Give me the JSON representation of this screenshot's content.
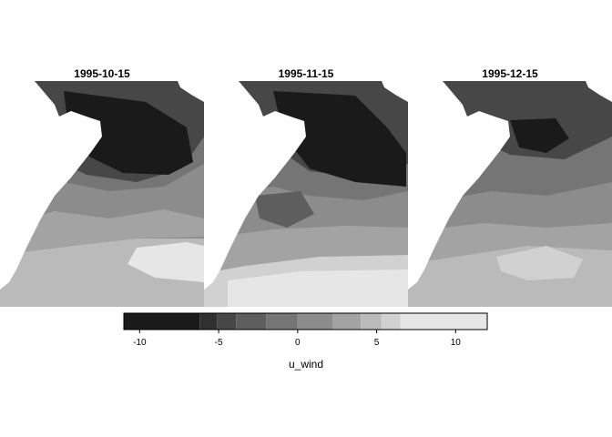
{
  "chart_data": {
    "type": "heatmap",
    "variable": "u_wind",
    "panels": [
      {
        "title": "1995-10-15"
      },
      {
        "title": "1995-11-15"
      },
      {
        "title": "1995-12-15"
      }
    ],
    "colorbar": {
      "title": "u_wind",
      "range": [
        -11,
        12
      ],
      "breaks": [
        -11,
        -6.2,
        -5.1,
        -3.9,
        -2,
        0,
        2.2,
        4,
        5.3,
        6.5,
        12
      ],
      "colors": [
        "#1a1a1a",
        "#303030",
        "#474747",
        "#5e5e5e",
        "#757575",
        "#8c8c8c",
        "#a3a3a3",
        "#bababa",
        "#d1d1d1",
        "#e6e6e6"
      ],
      "ticks": [
        {
          "value": -10,
          "label": "-10"
        },
        {
          "value": -5,
          "label": "-5"
        },
        {
          "value": 0,
          "label": "0"
        },
        {
          "value": 5,
          "label": "5"
        },
        {
          "value": 10,
          "label": "10"
        }
      ]
    }
  }
}
